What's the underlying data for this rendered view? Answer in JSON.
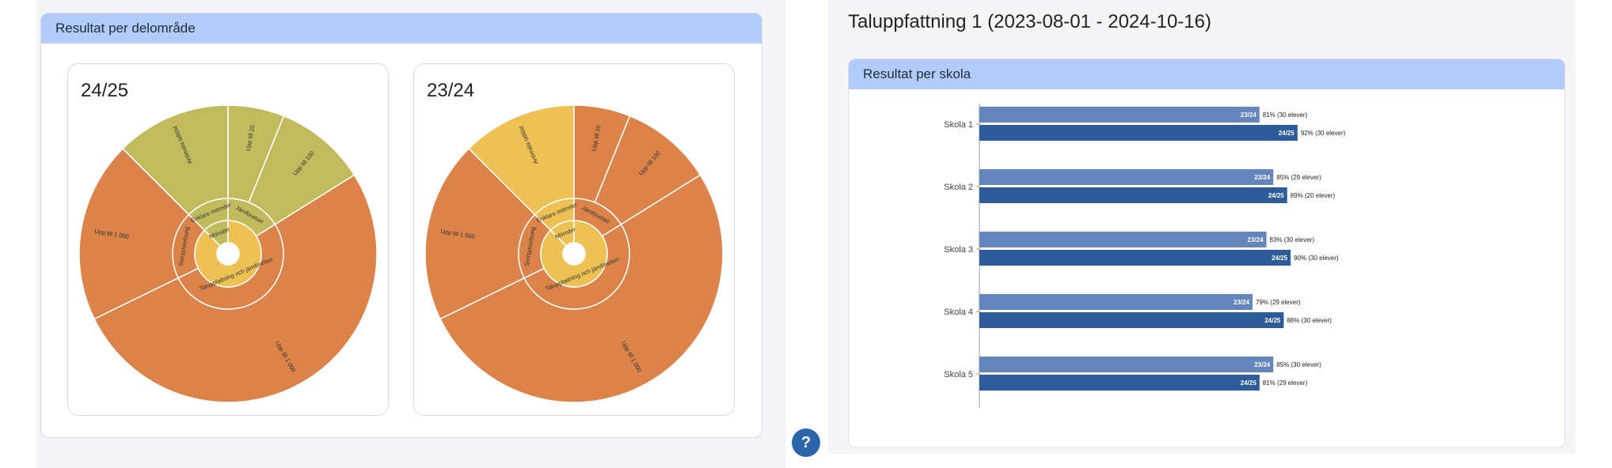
{
  "left": {
    "panel_title": "Resultat per delområde",
    "cards": [
      {
        "title": "24/25"
      },
      {
        "title": "23/24"
      }
    ],
    "help_label": "?"
  },
  "right": {
    "page_title": "Taluppfattning 1 (2023-08-01 - 2024-10-16)",
    "panel_title": "Resultat per skola"
  },
  "colors": {
    "header_bg": "#b2cbf9",
    "orange": "#db8349",
    "olive": "#c0bc5d",
    "yellow": "#edc153",
    "bar_2324": "#6585bd",
    "bar_2425": "#2e5c9a",
    "help_button": "#2b64a8"
  },
  "chart_data": [
    {
      "type": "sunburst",
      "title": "24/25",
      "rings": [
        {
          "labels": [
            "Mönster"
          ]
        },
        {
          "labels": [
            "Enklare mönster",
            "Jämförelser",
            "Sortsytserbung",
            "Taluppfattning och jämförelser"
          ]
        },
        {
          "labels": [
            "Antimala taltlöd",
            "Upp till 20",
            "Upp till 100",
            "Upp till 1 000",
            "Upp till 1 000"
          ]
        }
      ],
      "colors_by_segment": [
        "olive",
        "olive",
        "olive",
        "orange",
        "orange",
        "yellow"
      ]
    },
    {
      "type": "sunburst",
      "title": "23/24",
      "rings": [
        {
          "labels": [
            "Mönster"
          ]
        },
        {
          "labels": [
            "Enklare mönster",
            "Jämförelser",
            "Sortsytserbung",
            "Taluppfattning och jämförelser"
          ]
        },
        {
          "labels": [
            "Antimala taltlöd",
            "Upp till 20",
            "Upp till 100",
            "Upp till 1 000",
            "Upp till 1 000"
          ]
        }
      ],
      "colors_by_segment": [
        "yellow",
        "orange",
        "orange",
        "orange",
        "orange",
        "yellow"
      ]
    },
    {
      "type": "bar",
      "orientation": "horizontal",
      "title": "Resultat per skola",
      "categories": [
        "Skola 1",
        "Skola 2",
        "Skola 3",
        "Skola 4",
        "Skola 5"
      ],
      "series": [
        {
          "name": "23/24",
          "values": [
            81,
            85,
            83,
            79,
            85
          ],
          "labels": [
            "81% (30 elever)",
            "85% (29 elever)",
            "83% (30 elever)",
            "79% (29 elever)",
            "85% (30 elever)"
          ]
        },
        {
          "name": "24/25",
          "values": [
            92,
            89,
            90,
            88,
            81
          ],
          "labels": [
            "92% (30 elever)",
            "89% (20 elever)",
            "90% (30 elever)",
            "88% (30 elever)",
            "81% (29 elever)"
          ]
        }
      ],
      "xlim": [
        0,
        100
      ],
      "grid": false
    }
  ]
}
